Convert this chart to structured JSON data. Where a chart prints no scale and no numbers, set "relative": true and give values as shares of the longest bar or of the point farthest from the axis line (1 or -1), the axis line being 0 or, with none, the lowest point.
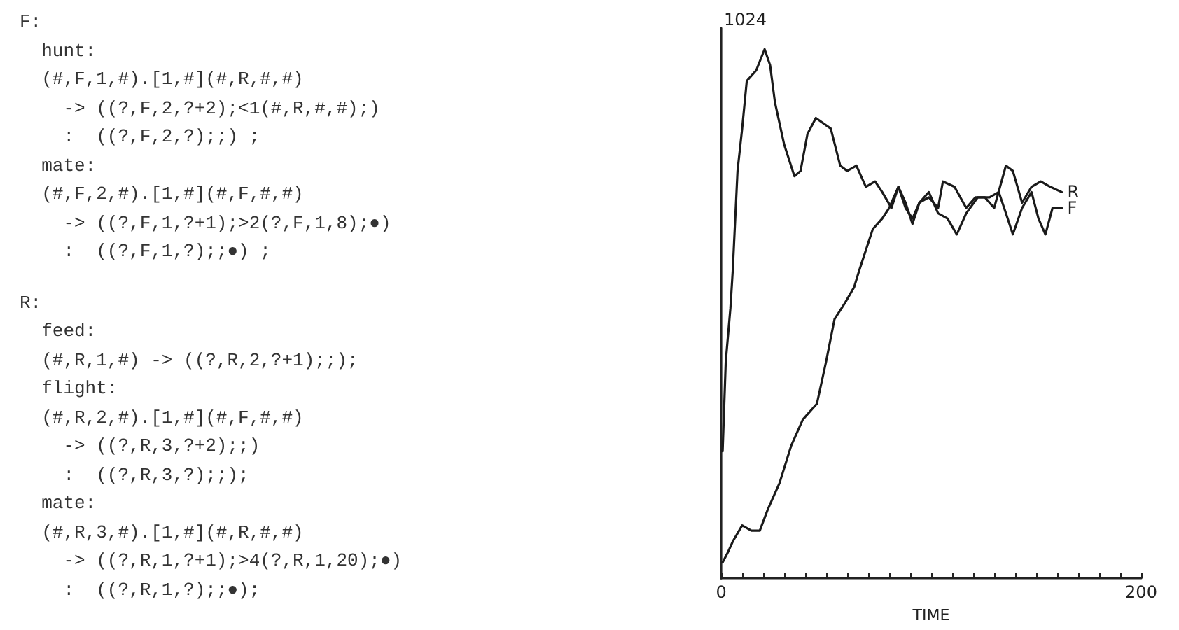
{
  "chart_data": [
    {
      "type": "other",
      "annotations": [
        "F:",
        "  hunt:",
        "  (#,F,1,#).[1,#](#,R,#,#)",
        "    -> ((?,F,2,?+2);<1(#,R,#,#);)",
        "    :  ((?,F,2,?);;) ;",
        "  mate:",
        "  (#,F,2,#).[1,#](#,F,#,#)",
        "    -> ((?,F,1,?+1);>2(?,F,1,8);●)",
        "    :  ((?,F,1,?);;●) ;",
        "R:",
        "  feed:",
        "  (#,R,1,#) -> ((?,R,2,?+1);;);",
        "  flight:",
        "  (#,R,2,#).[1,#](#,F,#,#)",
        "    -> ((?,R,3,?+2);;)",
        "    :  ((?,R,3,?);;);",
        "  mate:",
        "  (#,R,3,#).[1,#](#,R,#,#)",
        "    -> ((?,R,1,?+1);>4(?,R,1,20);●)",
        "    :  ((?,R,1,?);;●);"
      ]
    },
    {
      "type": "line",
      "xlabel": "TIME",
      "xlim": [
        0,
        200
      ],
      "xticks": [
        0,
        {
          "value": 10,
          "label": null
        },
        {
          "value": 20,
          "label": null
        },
        {
          "value": 30,
          "label": null
        },
        {
          "value": 40,
          "label": null
        },
        {
          "value": 50,
          "label": null
        },
        {
          "value": 60,
          "label": null
        },
        {
          "value": 70,
          "label": null
        },
        {
          "value": 80,
          "label": null
        },
        {
          "value": 90,
          "label": null
        },
        {
          "value": 100,
          "label": null
        },
        {
          "value": 110,
          "label": null
        },
        {
          "value": 120,
          "label": null
        },
        {
          "value": 130,
          "label": null
        },
        {
          "value": 140,
          "label": null
        },
        {
          "value": 150,
          "label": null
        },
        {
          "value": 160,
          "label": null
        },
        {
          "value": 170,
          "label": null
        },
        {
          "value": 180,
          "label": null
        },
        {
          "value": 190,
          "label": null
        },
        200
      ],
      "relative": true,
      "annotations": [
        "1024"
      ],
      "grid": false,
      "legend": false,
      "marker": "none",
      "line_style": "solid",
      "series": [
        {
          "name": "R",
          "color": "#1a1a1a",
          "x": [
            0.7,
            2.2,
            4.4,
            5.5,
            7.8,
            10,
            12.2,
            16.7,
            20.7,
            23.3,
            25.6,
            30,
            34.9,
            37.8,
            41.1,
            45.1,
            52.2,
            56.7,
            60,
            64.4,
            68.9,
            73.3,
            76.7,
            81.1,
            84.4,
            87.8,
            91.1,
            94.4,
            98.9,
            103.3,
            105.6,
            111.1,
            116.7,
            121.1,
            125.6,
            130,
            135.6,
            138.9,
            143.3,
            147.8,
            152.2,
            156.7,
            162.2
          ],
          "values": [
            0.24,
            0.41,
            0.51,
            0.58,
            0.77,
            0.85,
            0.94,
            0.96,
            1,
            0.97,
            0.9,
            0.82,
            0.76,
            0.77,
            0.84,
            0.87,
            0.85,
            0.78,
            0.77,
            0.78,
            0.74,
            0.75,
            0.73,
            0.7,
            0.74,
            0.71,
            0.67,
            0.71,
            0.72,
            0.7,
            0.75,
            0.74,
            0.7,
            0.72,
            0.72,
            0.7,
            0.78,
            0.77,
            0.71,
            0.74,
            0.75,
            0.74,
            0.73
          ]
        },
        {
          "name": "F",
          "color": "#1a1a1a",
          "x": [
            0.7,
            3.3,
            5.6,
            10,
            14.4,
            18.4,
            22.2,
            27.8,
            33.3,
            38.9,
            45.6,
            50,
            54,
            58.9,
            63.3,
            65.6,
            68.9,
            72.2,
            76.7,
            80,
            84.4,
            87.8,
            91.1,
            94.4,
            98.9,
            103.3,
            107.8,
            112.2,
            116.7,
            122.2,
            127.8,
            132.2,
            135.6,
            138.9,
            143.3,
            147.8,
            151.1,
            154.4,
            157.8,
            162.2
          ],
          "values": [
            0.03,
            0.05,
            0.07,
            0.1,
            0.09,
            0.09,
            0.13,
            0.18,
            0.25,
            0.3,
            0.33,
            0.41,
            0.49,
            0.52,
            0.55,
            0.58,
            0.62,
            0.66,
            0.68,
            0.7,
            0.74,
            0.7,
            0.68,
            0.71,
            0.73,
            0.69,
            0.68,
            0.65,
            0.69,
            0.72,
            0.72,
            0.73,
            0.69,
            0.65,
            0.7,
            0.73,
            0.68,
            0.65,
            0.7,
            0.7
          ]
        }
      ]
    }
  ]
}
